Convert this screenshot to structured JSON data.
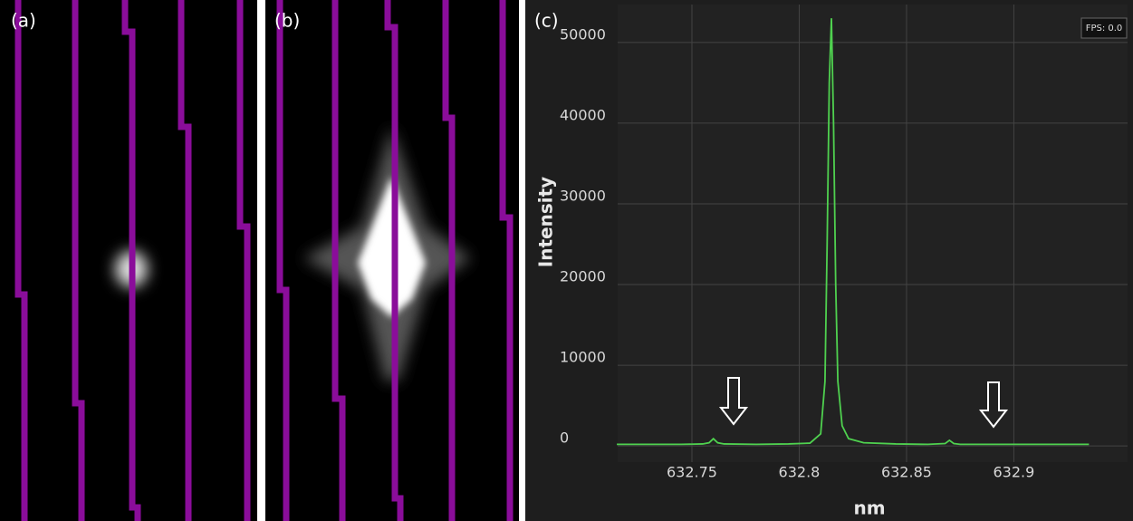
{
  "panel_labels": [
    "(a)",
    "(b)"
  ],
  "chart_data": {
    "type": "line",
    "panel_label": "(c)",
    "x_label": "nm",
    "y_label": "Intensity",
    "fps": "FPS: 0.0",
    "x": [
      632.715,
      632.73,
      632.745,
      632.755,
      632.758,
      632.76,
      632.762,
      632.765,
      632.78,
      632.795,
      632.805,
      632.81,
      632.812,
      632.813,
      632.814,
      632.815,
      632.816,
      632.817,
      632.818,
      632.82,
      632.823,
      632.83,
      632.845,
      632.86,
      632.868,
      632.87,
      632.872,
      632.875,
      632.89,
      632.91,
      632.935
    ],
    "values": [
      200,
      200,
      200,
      250,
      400,
      900,
      400,
      250,
      200,
      250,
      350,
      1500,
      8000,
      25000,
      45000,
      53000,
      40000,
      20000,
      8000,
      2500,
      900,
      400,
      250,
      200,
      300,
      700,
      300,
      200,
      200,
      200,
      200
    ],
    "color": "#4fd14f",
    "xlim": [
      632.7154,
      632.953
    ],
    "ylim": [
      -2000,
      54700
    ],
    "xticks": [
      632.75,
      632.8,
      632.85,
      632.9
    ],
    "yticks": [
      0,
      10000,
      20000,
      30000,
      40000,
      50000
    ],
    "grid": true
  }
}
